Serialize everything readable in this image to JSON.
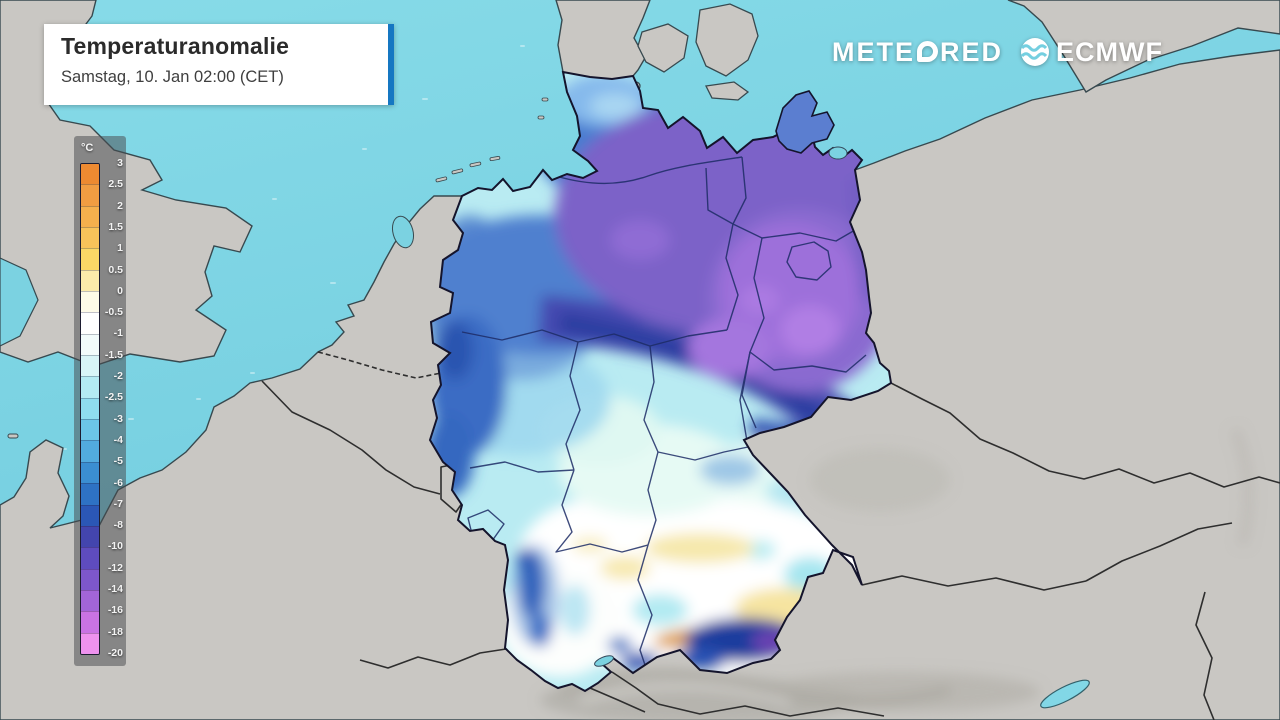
{
  "header": {
    "title": "Temperaturanomalie",
    "subtitle": "Samstag, 10. Jan 02:00 (CET)"
  },
  "watermark": {
    "brand_full": "METEORED",
    "brand_prefix": "METE",
    "brand_suffix": "RED",
    "partner": "ECMWF"
  },
  "legend": {
    "unit": "°C",
    "tick_labels": [
      "3",
      "2.5",
      "2",
      "1.5",
      "1",
      "0.5",
      "0",
      "-0.5",
      "-1",
      "-1.5",
      "-2",
      "-2.5",
      "-3",
      "-4",
      "-5",
      "-6",
      "-7",
      "-8",
      "-10",
      "-12",
      "-14",
      "-16",
      "-18",
      "-20"
    ],
    "segment_colors": [
      "#ed8a31",
      "#f19d42",
      "#f5b04d",
      "#f8c35a",
      "#fad766",
      "#fcebaa",
      "#fefbe8",
      "#ffffff",
      "#f2fbfb",
      "#d8f4f7",
      "#b4eaf3",
      "#8fdcef",
      "#6cc6e8",
      "#52abdf",
      "#3b8ed2",
      "#2e72c4",
      "#2b57b6",
      "#4345ae",
      "#5e4cbe",
      "#7d57cc",
      "#a265d8",
      "#c973e3",
      "#ee92ee"
    ]
  },
  "map": {
    "type": "temperature-anomaly-choropleth",
    "region": "Germany",
    "model": "ECMWF",
    "sea_color": "#79d2e2",
    "land_color": "#c9c7c3",
    "accent_bar_color": "#1577c2",
    "state_border_color": "#1d2c66",
    "country_border_color": "#2e2e2e"
  }
}
